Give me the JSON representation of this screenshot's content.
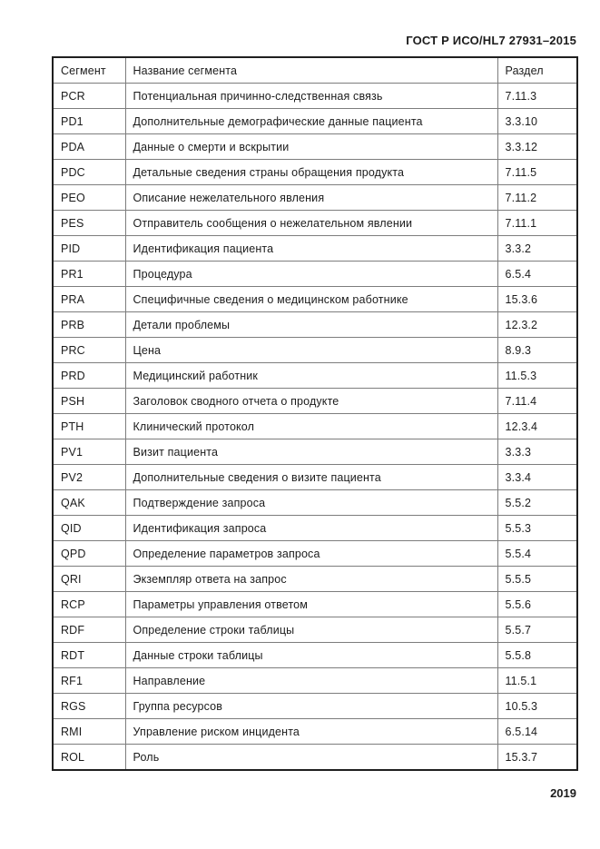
{
  "page": {
    "header_title": "ГОСТ Р ИСО/HL7 27931–2015",
    "page_number": "2019"
  },
  "colors": {
    "background": "#ffffff",
    "text": "#1c1c1c",
    "border_outer": "#1f1f1f",
    "border_inner": "#7d7d7d"
  },
  "table": {
    "columns": [
      "Сегмент",
      "Название сегмента",
      "Раздел"
    ],
    "rows": [
      {
        "code": "PCR",
        "name": "Потенциальная причинно-следственная связь",
        "section": "7.11.3"
      },
      {
        "code": "PD1",
        "name": "Дополнительные демографические данные пациента",
        "section": "3.3.10"
      },
      {
        "code": "PDA",
        "name": "Данные о смерти и вскрытии",
        "section": "3.3.12"
      },
      {
        "code": "PDC",
        "name": "Детальные сведения страны обращения продукта",
        "section": "7.11.5"
      },
      {
        "code": "PEO",
        "name": "Описание нежелательного явления",
        "section": "7.11.2"
      },
      {
        "code": "PES",
        "name": "Отправитель сообщения о нежелательном явлении",
        "section": "7.11.1"
      },
      {
        "code": "PID",
        "name": "Идентификация пациента",
        "section": "3.3.2"
      },
      {
        "code": "PR1",
        "name": "Процедура",
        "section": "6.5.4"
      },
      {
        "code": "PRA",
        "name": "Специфичные сведения о медицинском работнике",
        "section": "15.3.6"
      },
      {
        "code": "PRB",
        "name": "Детали проблемы",
        "section": "12.3.2"
      },
      {
        "code": "PRC",
        "name": "Цена",
        "section": "8.9.3"
      },
      {
        "code": "PRD",
        "name": "Медицинский работник",
        "section": "11.5.3"
      },
      {
        "code": "PSH",
        "name": "Заголовок сводного отчета о продукте",
        "section": "7.11.4"
      },
      {
        "code": "PTH",
        "name": "Клинический протокол",
        "section": "12.3.4"
      },
      {
        "code": "PV1",
        "name": "Визит пациента",
        "section": "3.3.3"
      },
      {
        "code": "PV2",
        "name": "Дополнительные сведения о визите пациента",
        "section": "3.3.4"
      },
      {
        "code": "QAK",
        "name": "Подтверждение запроса",
        "section": "5.5.2"
      },
      {
        "code": "QID",
        "name": "Идентификация запроса",
        "section": "5.5.3"
      },
      {
        "code": "QPD",
        "name": "Определение параметров запроса",
        "section": "5.5.4"
      },
      {
        "code": "QRI",
        "name": "Экземпляр ответа на запрос",
        "section": "5.5.5"
      },
      {
        "code": "RCP",
        "name": "Параметры управления ответом",
        "section": "5.5.6"
      },
      {
        "code": "RDF",
        "name": "Определение строки таблицы",
        "section": "5.5.7"
      },
      {
        "code": "RDT",
        "name": "Данные строки таблицы",
        "section": "5.5.8"
      },
      {
        "code": "RF1",
        "name": "Направление",
        "section": "11.5.1"
      },
      {
        "code": "RGS",
        "name": "Группа ресурсов",
        "section": "10.5.3"
      },
      {
        "code": "RMI",
        "name": "Управление риском инцидента",
        "section": "6.5.14"
      },
      {
        "code": "ROL",
        "name": "Роль",
        "section": "15.3.7"
      }
    ]
  }
}
